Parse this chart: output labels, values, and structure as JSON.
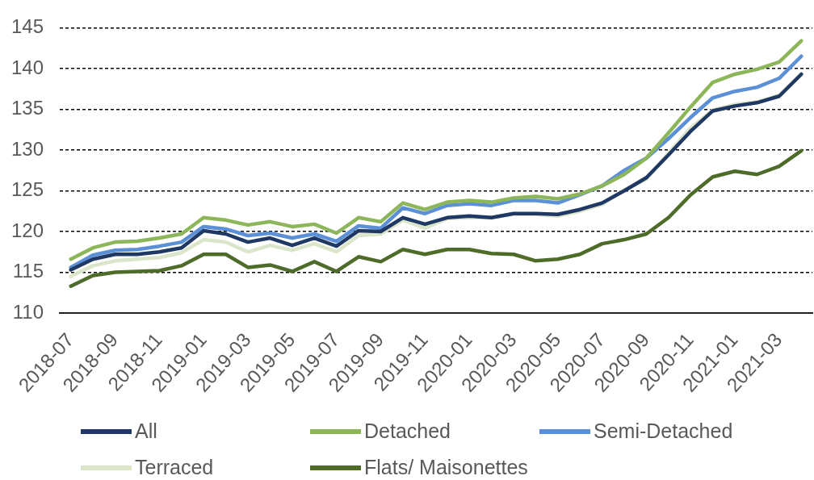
{
  "chart_data": {
    "type": "line",
    "categories": [
      "2018-07",
      null,
      "2018-09",
      null,
      "2018-11",
      null,
      "2019-01",
      null,
      "2019-03",
      null,
      "2019-05",
      null,
      "2019-07",
      null,
      "2019-09",
      null,
      "2019-11",
      null,
      "2020-01",
      null,
      "2020-03",
      null,
      "2020-05",
      null,
      "2020-07",
      null,
      "2020-09",
      null,
      "2020-11",
      null,
      "2021-01",
      null,
      "2021-03",
      null
    ],
    "series": [
      {
        "name": "All",
        "color": "#1f3864",
        "values": [
          115.3,
          116.6,
          117.2,
          117.2,
          117.5,
          118.0,
          120.1,
          119.7,
          118.7,
          119.2,
          118.3,
          119.2,
          118.2,
          120.1,
          120.0,
          121.7,
          120.9,
          121.7,
          121.9,
          121.7,
          122.2,
          122.2,
          122.1,
          122.7,
          123.5,
          125.0,
          126.6,
          129.4,
          132.3,
          134.8,
          135.4,
          135.8,
          136.6,
          139.3
        ]
      },
      {
        "name": "Detached",
        "color": "#8db65a",
        "values": [
          116.6,
          118.0,
          118.7,
          118.8,
          119.2,
          119.7,
          121.7,
          121.4,
          120.8,
          121.2,
          120.6,
          120.9,
          119.8,
          121.7,
          121.2,
          123.5,
          122.7,
          123.6,
          123.8,
          123.6,
          124.1,
          124.3,
          124.0,
          124.6,
          125.6,
          127.0,
          129.0,
          132.1,
          135.3,
          138.3,
          139.3,
          139.9,
          140.8,
          143.4
        ]
      },
      {
        "name": "Semi-Detached",
        "color": "#5b8fd6",
        "values": [
          115.6,
          117.1,
          117.7,
          117.8,
          118.2,
          118.7,
          120.6,
          120.3,
          119.5,
          119.8,
          119.2,
          119.7,
          118.8,
          120.7,
          120.4,
          122.9,
          122.2,
          123.2,
          123.4,
          123.2,
          123.8,
          123.8,
          123.5,
          124.5,
          125.6,
          127.5,
          129.0,
          131.4,
          134.0,
          136.4,
          137.2,
          137.7,
          138.8,
          141.5
        ]
      },
      {
        "name": "Terraced",
        "color": "#dbe5c9",
        "values": [
          114.5,
          115.8,
          116.4,
          116.6,
          116.8,
          117.4,
          119.0,
          118.7,
          117.5,
          118.3,
          117.7,
          118.5,
          117.5,
          119.5,
          119.7,
          121.4,
          120.4,
          121.6,
          121.7,
          121.7,
          122.1,
          122.1,
          121.9,
          122.5,
          123.3,
          125.1,
          126.4,
          129.6,
          132.7,
          134.9,
          135.6,
          135.9,
          136.7,
          139.3
        ]
      },
      {
        "name": "Flats/ Maisonettes",
        "color": "#4e6b2a",
        "values": [
          113.3,
          114.6,
          115.0,
          115.1,
          115.2,
          115.8,
          117.2,
          117.2,
          115.6,
          115.9,
          115.1,
          116.3,
          115.1,
          116.9,
          116.3,
          117.8,
          117.2,
          117.8,
          117.8,
          117.3,
          117.2,
          116.4,
          116.6,
          117.2,
          118.5,
          119.0,
          119.7,
          121.7,
          124.5,
          126.7,
          127.4,
          127.0,
          128.0,
          129.9
        ]
      }
    ],
    "ylim": [
      110,
      145
    ],
    "yticks": [
      110,
      115,
      120,
      125,
      130,
      135,
      140,
      145
    ],
    "grid": "y",
    "legend": "bottom",
    "marker": "none",
    "line_style": "solid"
  }
}
